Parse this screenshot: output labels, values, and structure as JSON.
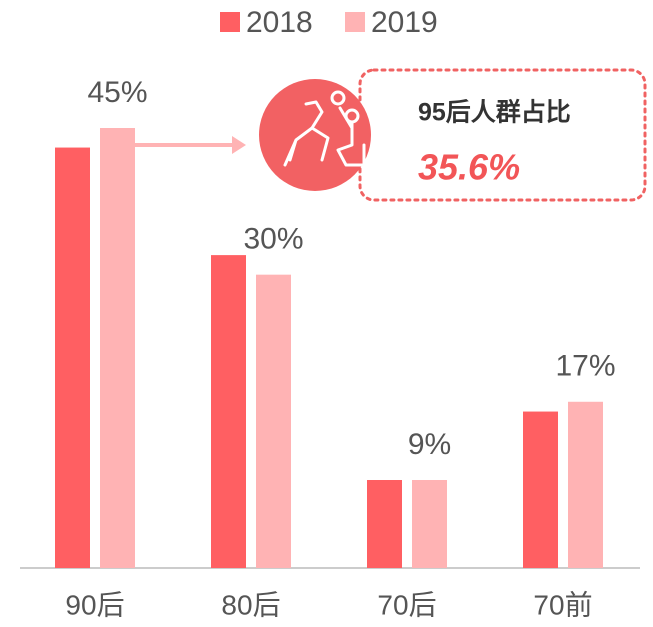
{
  "chart_data": {
    "type": "bar",
    "categories": [
      "90后",
      "80后",
      "70后",
      "70前"
    ],
    "series": [
      {
        "name": "2018",
        "color": "#ff5f62",
        "values": [
          43,
          32,
          9,
          16
        ]
      },
      {
        "name": "2019",
        "color": "#ffb3b4",
        "values": [
          45,
          30,
          9,
          17
        ],
        "value_labels": [
          "45%",
          "30%",
          "9%",
          "17%"
        ]
      }
    ],
    "legend": "top",
    "annotation": {
      "title": "95后人群占比",
      "value": "35.6%"
    }
  }
}
